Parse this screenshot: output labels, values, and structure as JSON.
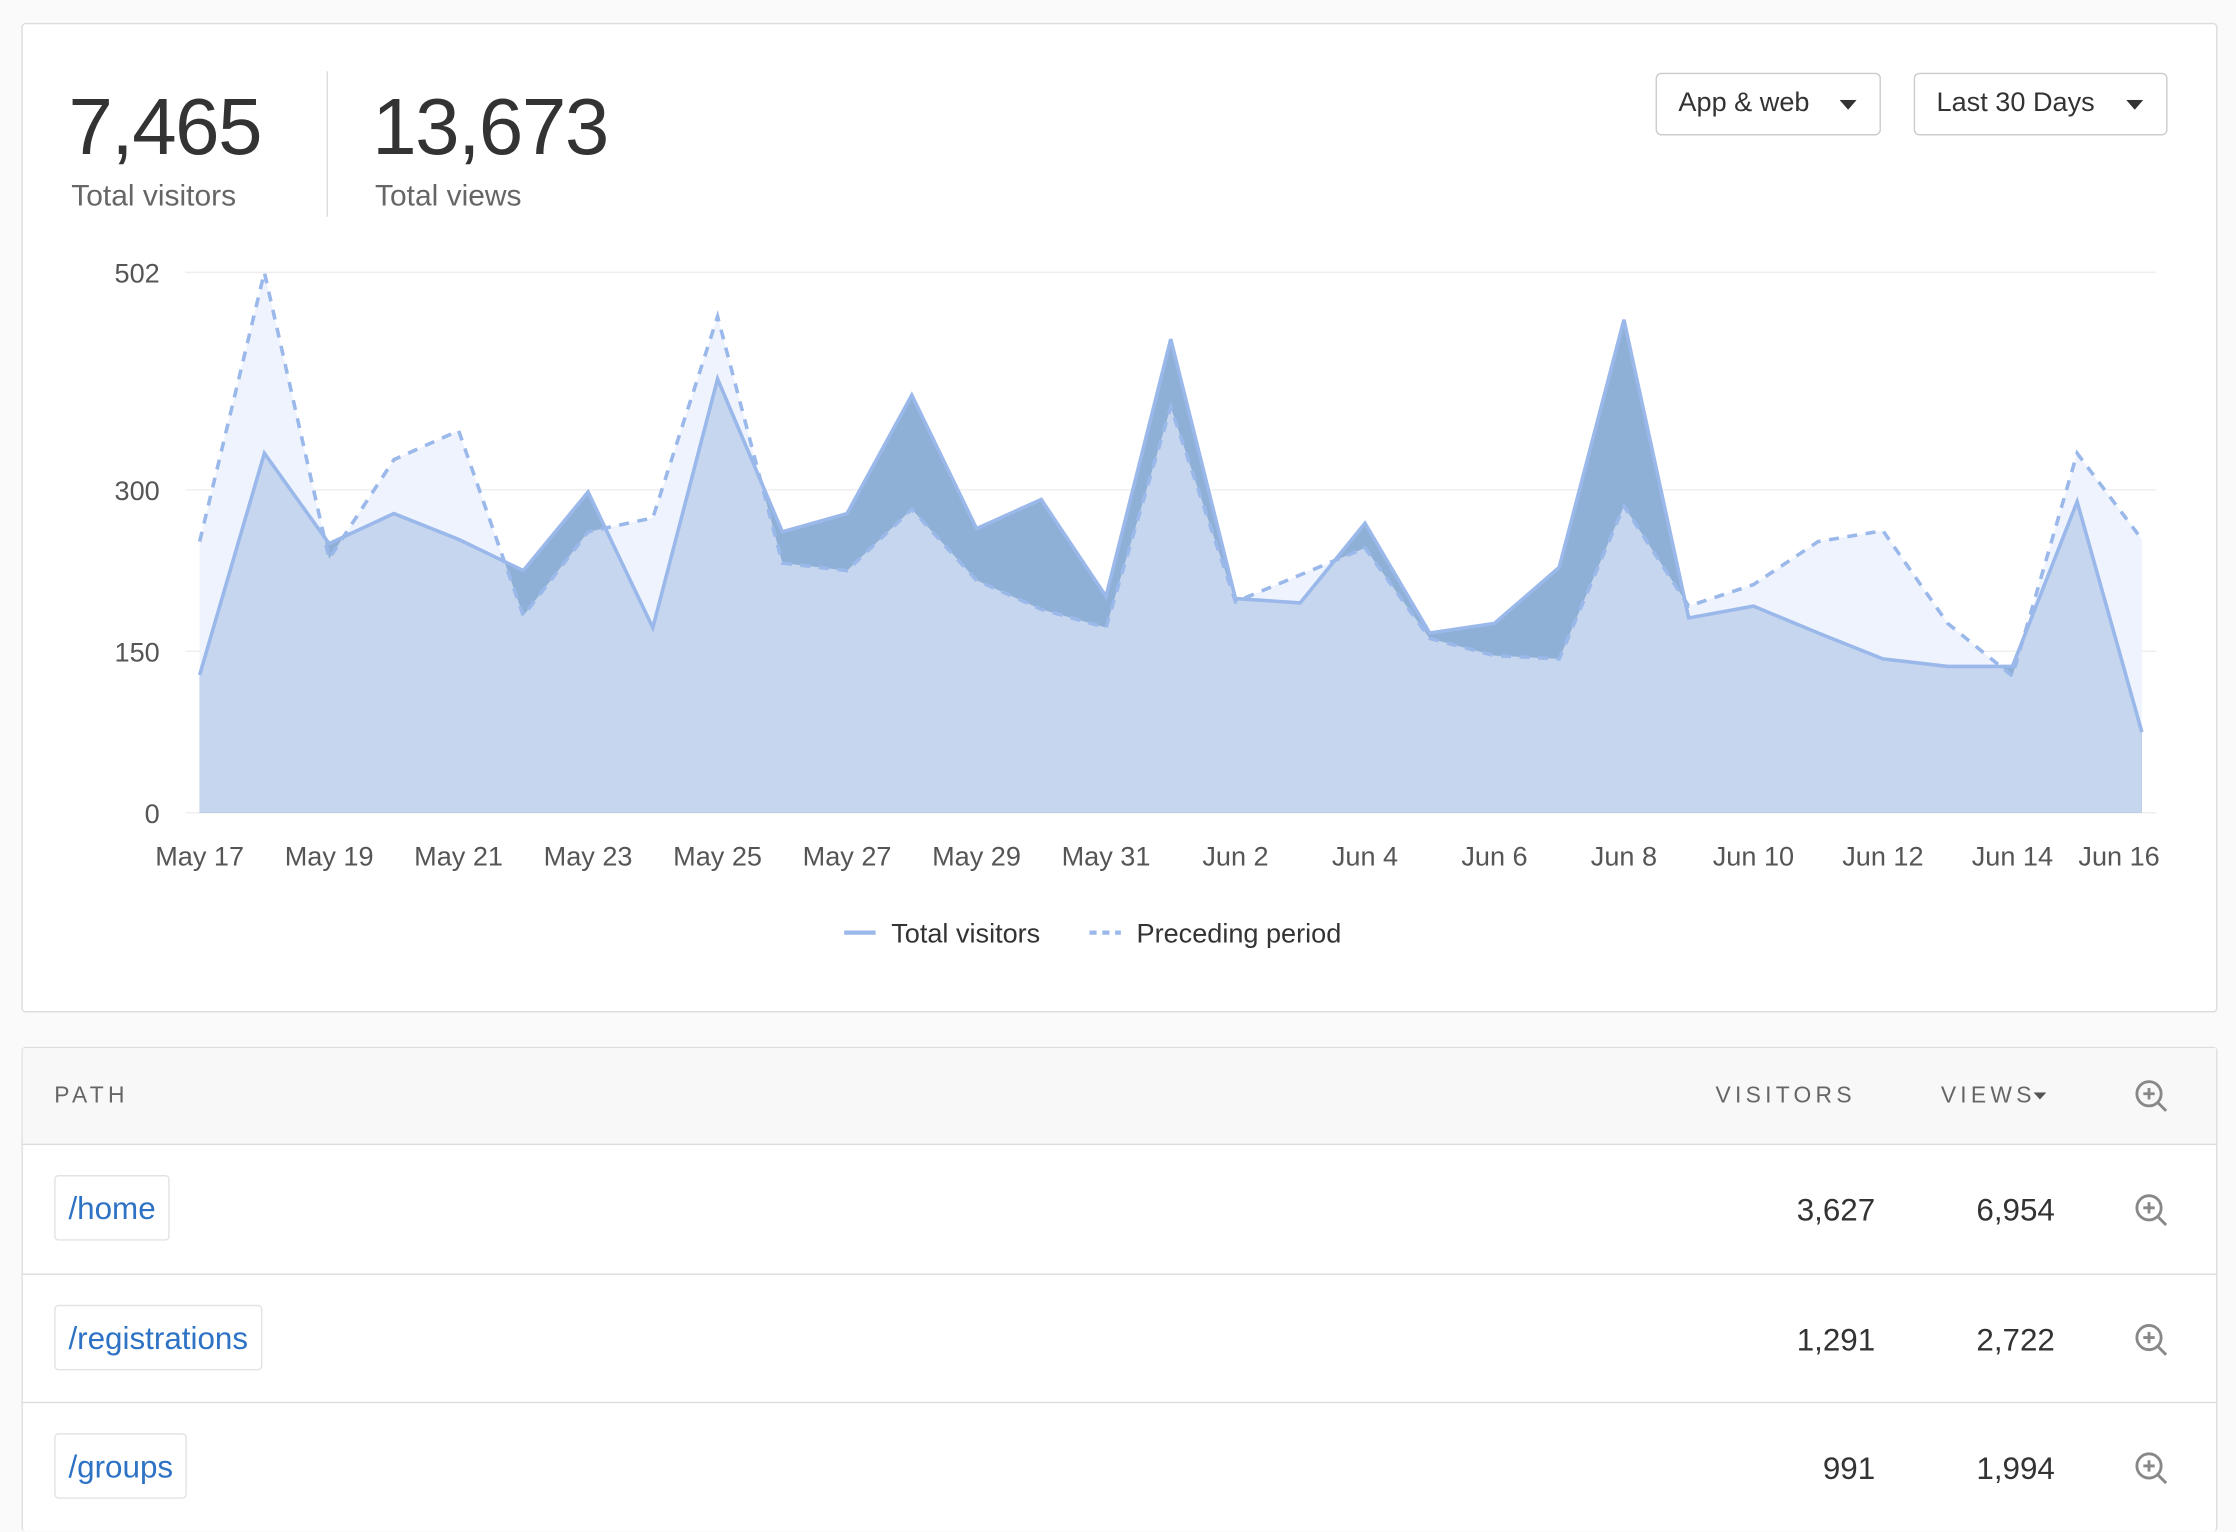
{
  "stats": [
    {
      "value": "7,465",
      "label": "Total visitors"
    },
    {
      "value": "13,673",
      "label": "Total views"
    }
  ],
  "controls": [
    "App & web",
    "Last 30 Days"
  ],
  "chart_data": {
    "type": "area",
    "categories": [
      "May 17",
      null,
      "May 19",
      null,
      "May 21",
      null,
      "May 23",
      null,
      "May 25",
      null,
      "May 27",
      null,
      "May 29",
      null,
      "May 31",
      null,
      "Jun 2",
      null,
      "Jun 4",
      null,
      "Jun 6",
      null,
      "Jun 8",
      null,
      "Jun 10",
      null,
      "Jun 12",
      null,
      "Jun 14",
      null,
      "Jun 16"
    ],
    "series": [
      {
        "name": "Total visitors",
        "color": "#9ab8ea",
        "values": [
          128,
          334,
          250,
          278,
          254,
          225,
          298,
          172,
          403,
          261,
          278,
          388,
          264,
          291,
          201,
          440,
          199,
          195,
          269,
          167,
          176,
          228,
          458,
          181,
          192,
          167,
          143,
          136,
          136,
          289,
          75
        ]
      },
      {
        "name": "Preceding period",
        "color": "#9ab8ea",
        "dashed": true,
        "values": [
          252,
          502,
          236,
          328,
          355,
          183,
          261,
          274,
          461,
          232,
          225,
          282,
          216,
          189,
          172,
          377,
          196,
          221,
          246,
          162,
          146,
          143,
          285,
          192,
          212,
          252,
          262,
          176,
          127,
          334,
          254
        ]
      }
    ],
    "ylim": [
      0,
      502
    ],
    "yticks": [
      0,
      150,
      300,
      502
    ],
    "grid": true
  },
  "table": {
    "headers": [
      "PATH",
      "VISITORS",
      "VIEWS"
    ],
    "rows": [
      [
        "/home",
        "3,627",
        "6,954"
      ],
      [
        "/registrations",
        "1,291",
        "2,722"
      ],
      [
        "/groups",
        "991",
        "1,994"
      ]
    ]
  }
}
